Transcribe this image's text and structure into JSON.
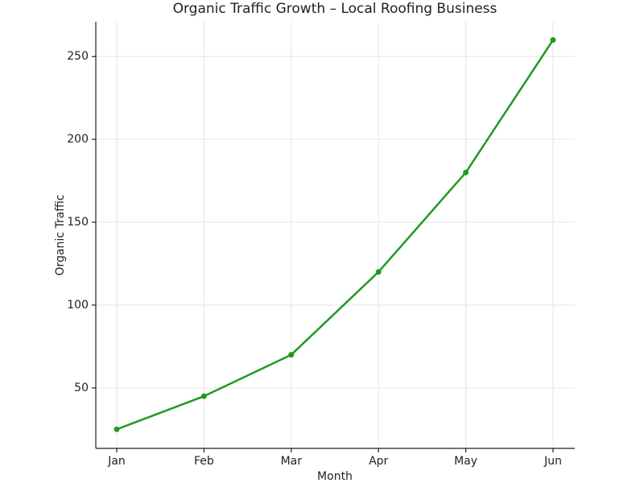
{
  "chart_data": {
    "type": "line",
    "title": "Organic Traffic Growth – Local Roofing Business",
    "x_label": "Month",
    "y_label": "Organic Traffic",
    "categories": [
      "Jan",
      "Feb",
      "Mar",
      "Apr",
      "May",
      "Jun"
    ],
    "series": [
      {
        "name": "Organic Traffic",
        "color": "#1f9a1f",
        "values": [
          25,
          45,
          70,
          120,
          180,
          260
        ]
      }
    ],
    "ylim": [
      13.5,
      271
    ],
    "yticks": [
      50,
      100,
      150,
      200,
      250
    ],
    "grid": true
  }
}
